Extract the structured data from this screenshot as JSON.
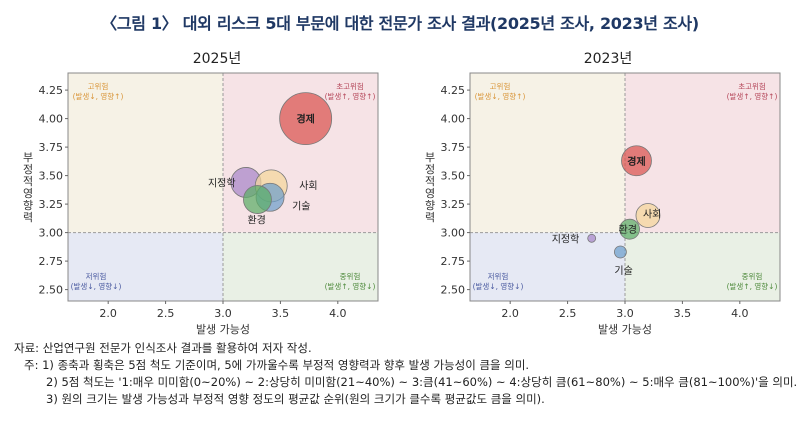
{
  "title": "〈그림 1〉 대외 리스크 5대 부문에 대한 전문가 조사 결과(2025년 조사, 2023년 조사)",
  "colors": {
    "title": "#1f3864",
    "q_top_left": "#f6f2e6",
    "q_top_right": "#f6e3e6",
    "q_bottom_left": "#e6e9f4",
    "q_bottom_right": "#e9f0e5"
  },
  "quadrant_labels": {
    "top_left": {
      "line1": "고위험",
      "line2": "(발생↓, 영향↑)",
      "color": "#d9963a"
    },
    "top_right": {
      "line1": "초고위험",
      "line2": "(발생↑, 영향↑)",
      "color": "#b5475a"
    },
    "bottom_left": {
      "line1": "저위험",
      "line2": "(발생↓, 영향↓)",
      "color": "#4a5aa0"
    },
    "bottom_right": {
      "line1": "중위험",
      "line2": "(발생↑, 영향↓)",
      "color": "#4e8a3c"
    }
  },
  "chart_data": [
    {
      "type": "scatter",
      "title": "2025년",
      "xlabel": "발생 가능성",
      "ylabel": "부정적 영향력",
      "xlim": [
        1.65,
        4.35
      ],
      "ylim": [
        2.4,
        4.4
      ],
      "xticks": [
        "2.0",
        "2.5",
        "3.0",
        "3.5",
        "4.0"
      ],
      "yticks": [
        "2.50",
        "2.75",
        "3.00",
        "3.25",
        "3.50",
        "3.75",
        "4.00",
        "4.25"
      ],
      "series": [
        {
          "label": "경제",
          "x": 3.72,
          "y": 4.0,
          "r": 26,
          "color": "#d9534f"
        },
        {
          "label": "지정학",
          "x": 3.2,
          "y": 3.44,
          "r": 15,
          "color": "#a886c9"
        },
        {
          "label": "사회",
          "x": 3.42,
          "y": 3.41,
          "r": 16,
          "color": "#f4d79b"
        },
        {
          "label": "기술",
          "x": 3.41,
          "y": 3.31,
          "r": 14,
          "color": "#6ea0cc"
        },
        {
          "label": "환경",
          "x": 3.3,
          "y": 3.29,
          "r": 14,
          "color": "#5cad66"
        }
      ]
    },
    {
      "type": "scatter",
      "title": "2023년",
      "xlabel": "발생 가능성",
      "ylabel": "부정적 영향력",
      "xlim": [
        1.65,
        4.35
      ],
      "ylim": [
        2.4,
        4.4
      ],
      "xticks": [
        "2.0",
        "2.5",
        "3.0",
        "3.5",
        "4.0"
      ],
      "yticks": [
        "2.50",
        "2.75",
        "3.00",
        "3.25",
        "3.50",
        "3.75",
        "4.00",
        "4.25"
      ],
      "series": [
        {
          "label": "경제",
          "x": 3.1,
          "y": 3.63,
          "r": 15,
          "color": "#d9534f"
        },
        {
          "label": "사회",
          "x": 3.2,
          "y": 3.15,
          "r": 12,
          "color": "#f4d79b"
        },
        {
          "label": "환경",
          "x": 3.04,
          "y": 3.03,
          "r": 10,
          "color": "#5cad66"
        },
        {
          "label": "지정학",
          "x": 2.71,
          "y": 2.95,
          "r": 4,
          "color": "#a886c9"
        },
        {
          "label": "기술",
          "x": 2.96,
          "y": 2.83,
          "r": 6,
          "color": "#6ea0cc"
        }
      ]
    }
  ],
  "notes": {
    "source": "자료: 산업연구원 전문가 인식조사 결과를 활용하여 저자 작성.",
    "note1": "주: 1) 종축과 횡축은 5점 척도 기준이며, 5에 가까울수록 부정적 영향력과 향후 발생 가능성이 큼을 의미.",
    "note2": "2) 5점 척도는 '1:매우 미미함(0~20%) ~ 2:상당히 미미함(21~40%) ~ 3:큼(41~60%) ~ 4:상당히 큼(61~80%) ~ 5:매우 큼(81~100%)'을 의미.",
    "note3": "3) 원의 크기는 발생 가능성과 부정적 영향 정도의 평균값 순위(원의 크기가 클수록 평균값도 큼을 의미)."
  }
}
